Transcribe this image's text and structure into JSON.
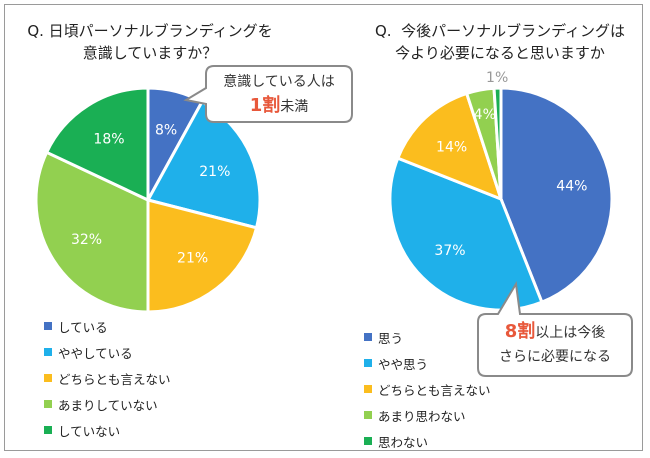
{
  "chart_data": [
    {
      "type": "pie",
      "title": "Q. 日頃パーソナルブランディングを\n意識していますか？",
      "categories": [
        "している",
        "ややしている",
        "どちらとも言えない",
        "あまりしていない",
        "していない"
      ],
      "values": [
        8,
        21,
        21,
        32,
        18
      ],
      "labels": [
        "8%",
        "21%",
        "21%",
        "32%",
        "18%"
      ],
      "colors": [
        "#4472c4",
        "#1fb0ea",
        "#fbbd1e",
        "#92d050",
        "#1aaf54"
      ],
      "legend_position": "bottom-left",
      "callout": {
        "line1": "意識している人は",
        "emphasis": "1割",
        "rest": "未満"
      }
    },
    {
      "type": "pie",
      "title": "Q.  今後パーソナルブランディングは\n今より必要になると思いますか",
      "categories": [
        "思う",
        "やや思う",
        "どちらとも言えない",
        "あまり思わない",
        "思わない"
      ],
      "values": [
        44,
        37,
        14,
        4,
        1
      ],
      "labels": [
        "44%",
        "37%",
        "14%",
        "4%",
        "1%"
      ],
      "colors": [
        "#4472c4",
        "#1fb0ea",
        "#fbbd1e",
        "#92d050",
        "#1aaf54"
      ],
      "legend_position": "bottom-left",
      "callout": {
        "emphasis": "8割",
        "rest": "以上は今後",
        "line2": "さらに必要になる"
      }
    }
  ]
}
